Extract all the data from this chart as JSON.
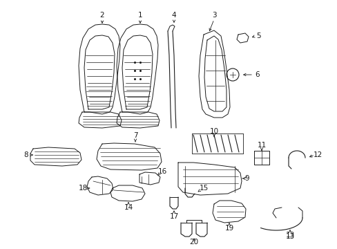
{
  "background_color": "#ffffff",
  "line_color": "#1a1a1a",
  "lw": 0.7,
  "fig_w": 4.89,
  "fig_h": 3.6,
  "dpi": 100
}
